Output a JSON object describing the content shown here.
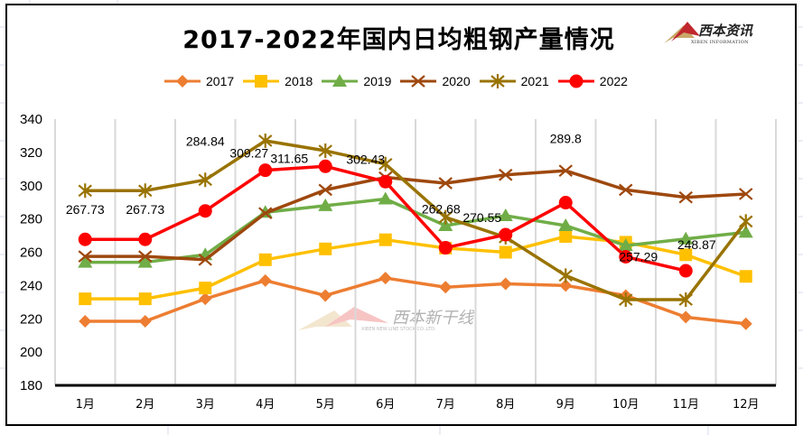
{
  "window": {
    "title": "2017-2022年国内日均粗钢产量情况",
    "logo": {
      "name": "西本资讯",
      "sub": "XIBEN INFORMATION"
    },
    "watermark": {
      "name": "西本新干线",
      "sub": "XIBEN NEW LINE STOCK CO.,LTD."
    }
  },
  "chart_data": {
    "type": "line",
    "title": "2017-2022年国内日均粗钢产量情况",
    "xlabel": "",
    "ylabel": "",
    "categories": [
      "1月",
      "2月",
      "3月",
      "4月",
      "5月",
      "6月",
      "7月",
      "8月",
      "9月",
      "10月",
      "11月",
      "12月"
    ],
    "ylim": [
      180,
      340
    ],
    "yticks": [
      180,
      200,
      220,
      240,
      260,
      280,
      300,
      320,
      340
    ],
    "grid": "vertical",
    "legend": "top",
    "series": [
      {
        "name": "2017",
        "color": "#ED7D31",
        "marker": "diamond",
        "values": [
          218.5,
          218.5,
          232,
          243,
          234,
          244.5,
          239,
          241,
          240,
          234,
          221,
          217
        ]
      },
      {
        "name": "2018",
        "color": "#FFC000",
        "marker": "square",
        "values": [
          232,
          232,
          238.5,
          255.5,
          262,
          267.5,
          262.5,
          260,
          269.5,
          266,
          258.5,
          245.5
        ]
      },
      {
        "name": "2019",
        "color": "#70AD47",
        "marker": "triangle",
        "values": [
          254,
          254,
          258.5,
          284,
          288,
          292,
          276,
          282,
          276,
          264,
          268,
          272
        ]
      },
      {
        "name": "2020",
        "color": "#9E480E",
        "marker": "x",
        "values": [
          257.5,
          257.5,
          255.5,
          283.5,
          297.5,
          305,
          301.5,
          306.5,
          309,
          297.5,
          293,
          295
        ]
      },
      {
        "name": "2021",
        "color": "#997300",
        "marker": "star",
        "values": [
          297,
          297,
          303.5,
          327,
          321,
          313,
          281,
          269,
          246,
          231.5,
          231.5,
          278.5
        ]
      },
      {
        "name": "2022",
        "color": "#FF0000",
        "marker": "circle",
        "values": [
          267.73,
          267.73,
          284.84,
          309.27,
          311.65,
          302.43,
          262.68,
          270.55,
          289.8,
          257.29,
          248.87,
          null
        ],
        "data_labels": [
          "267.73",
          "267.73",
          "284.84",
          "309.27",
          "311.65",
          "302.43",
          "262.68",
          "270.55",
          "289.8",
          "257.29",
          "248.87"
        ]
      }
    ]
  }
}
